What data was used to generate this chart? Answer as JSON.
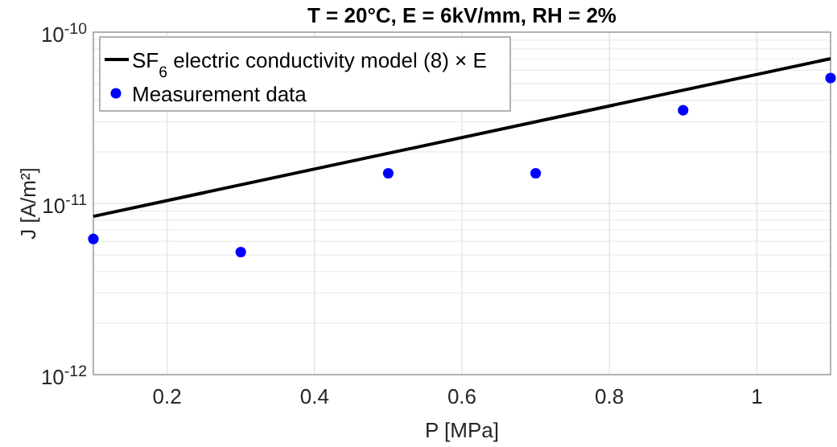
{
  "chart_data": {
    "type": "scatter",
    "title": "T = 20°C, E = 6kV/mm, RH = 2%",
    "xlabel": "P [MPa]",
    "ylabel": "J [A/m²]",
    "log": "y",
    "grid": true,
    "legend": "top left",
    "xlim": [
      0.1,
      1.1
    ],
    "xticks": [
      0.2,
      0.4,
      0.6,
      0.8,
      1
    ],
    "ylim": [
      1e-12,
      1e-10
    ],
    "yticks": [
      {
        "value": 1e-12,
        "label": "10$^{-12}$"
      },
      {
        "value": 1e-11,
        "label": "10$^{-11}$"
      },
      {
        "value": 1e-10,
        "label": "10$^{-10}$"
      }
    ],
    "series": [
      {
        "name": "SF$_{6}$ electric conductivity model (8) × E",
        "type": "line",
        "color": "#000000",
        "marker": "none",
        "line_style": "solid",
        "x": [
          0.1,
          1.1
        ],
        "values": [
          8.4e-12,
          7e-11
        ]
      },
      {
        "name": "Measurement data",
        "color": "#0000ff",
        "marker": "circle",
        "x": [
          0.1,
          0.3,
          0.5,
          0.7,
          0.9,
          1.1
        ],
        "values": [
          6.2e-12,
          5.2e-12,
          1.5e-11,
          1.5e-11,
          3.5e-11,
          5.4e-11
        ]
      }
    ]
  }
}
